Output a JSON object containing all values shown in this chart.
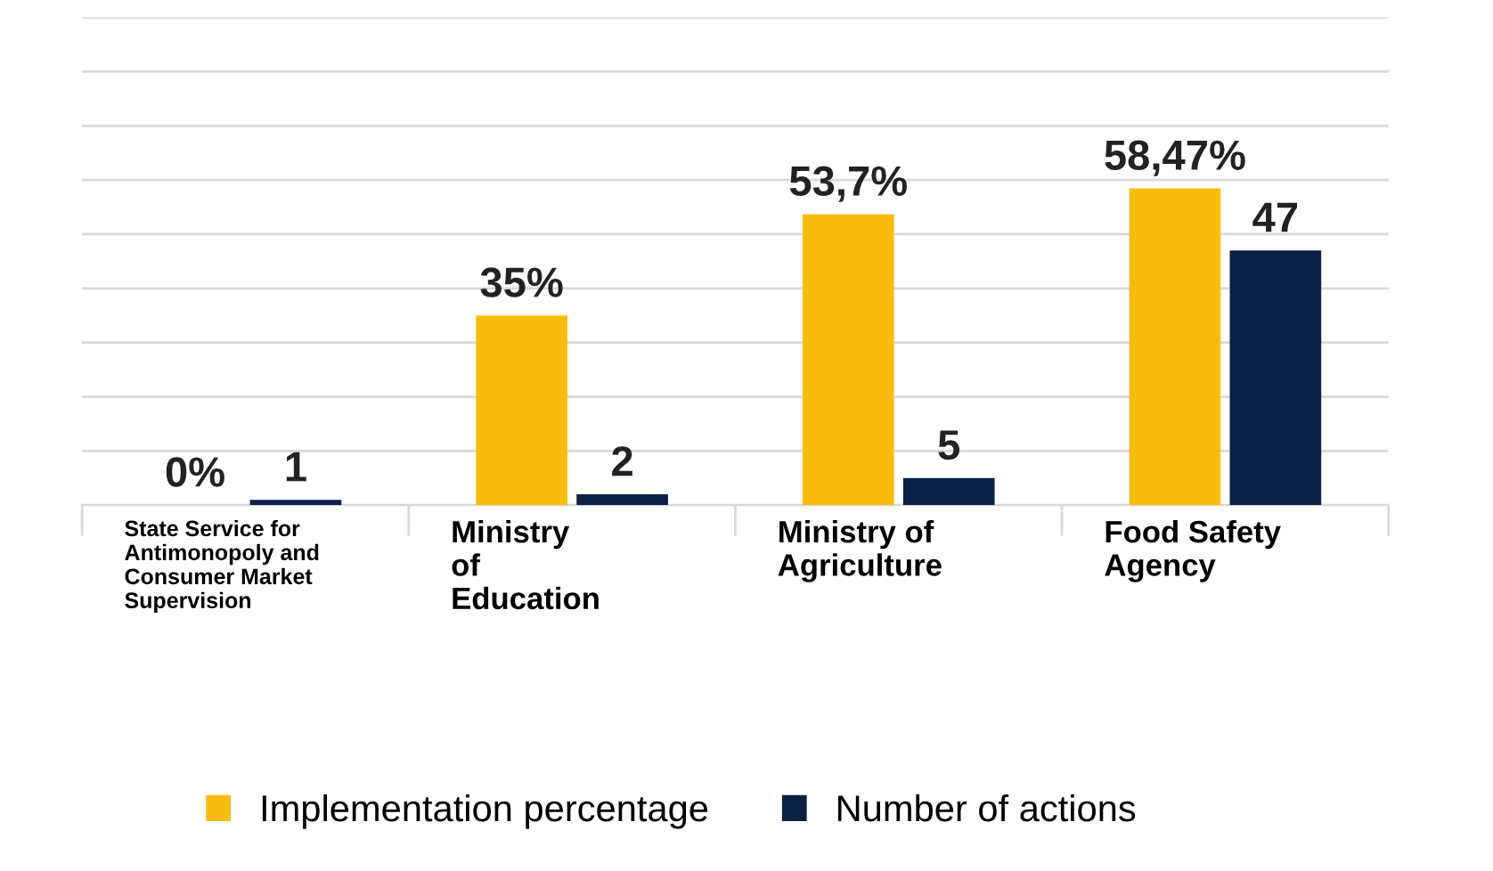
{
  "chart_data": {
    "type": "bar",
    "categories": [
      "State Service for\nAntimonopoly and\nConsumer Market\nSupervision",
      "Ministry\nof\nEducation",
      "Ministry of\nAgriculture",
      "Food Safety\nAgency"
    ],
    "series": [
      {
        "name": "Implementation percentage",
        "color": "#fbbc10",
        "values": [
          0,
          35,
          53.7,
          58.47
        ],
        "value_labels": [
          "0%",
          "35%",
          "53,7%",
          "58,47%"
        ]
      },
      {
        "name": "Number of actions",
        "color": "#0c1f44",
        "values": [
          1,
          2,
          5,
          47
        ],
        "value_labels": [
          "1",
          "2",
          "5",
          "47"
        ]
      }
    ],
    "ylim": [
      0,
      90
    ],
    "yticks": [
      {
        "value": 0,
        "label": null
      },
      {
        "value": 10,
        "label": null
      },
      {
        "value": 20,
        "label": null
      },
      {
        "value": 30,
        "label": null
      },
      {
        "value": 40,
        "label": null
      },
      {
        "value": 50,
        "label": null
      },
      {
        "value": 60,
        "label": null
      },
      {
        "value": 70,
        "label": null
      },
      {
        "value": 80,
        "label": null
      },
      {
        "value": 90,
        "label": null
      }
    ],
    "grid": "y",
    "legend": "bottom",
    "tick_labels": "x"
  }
}
